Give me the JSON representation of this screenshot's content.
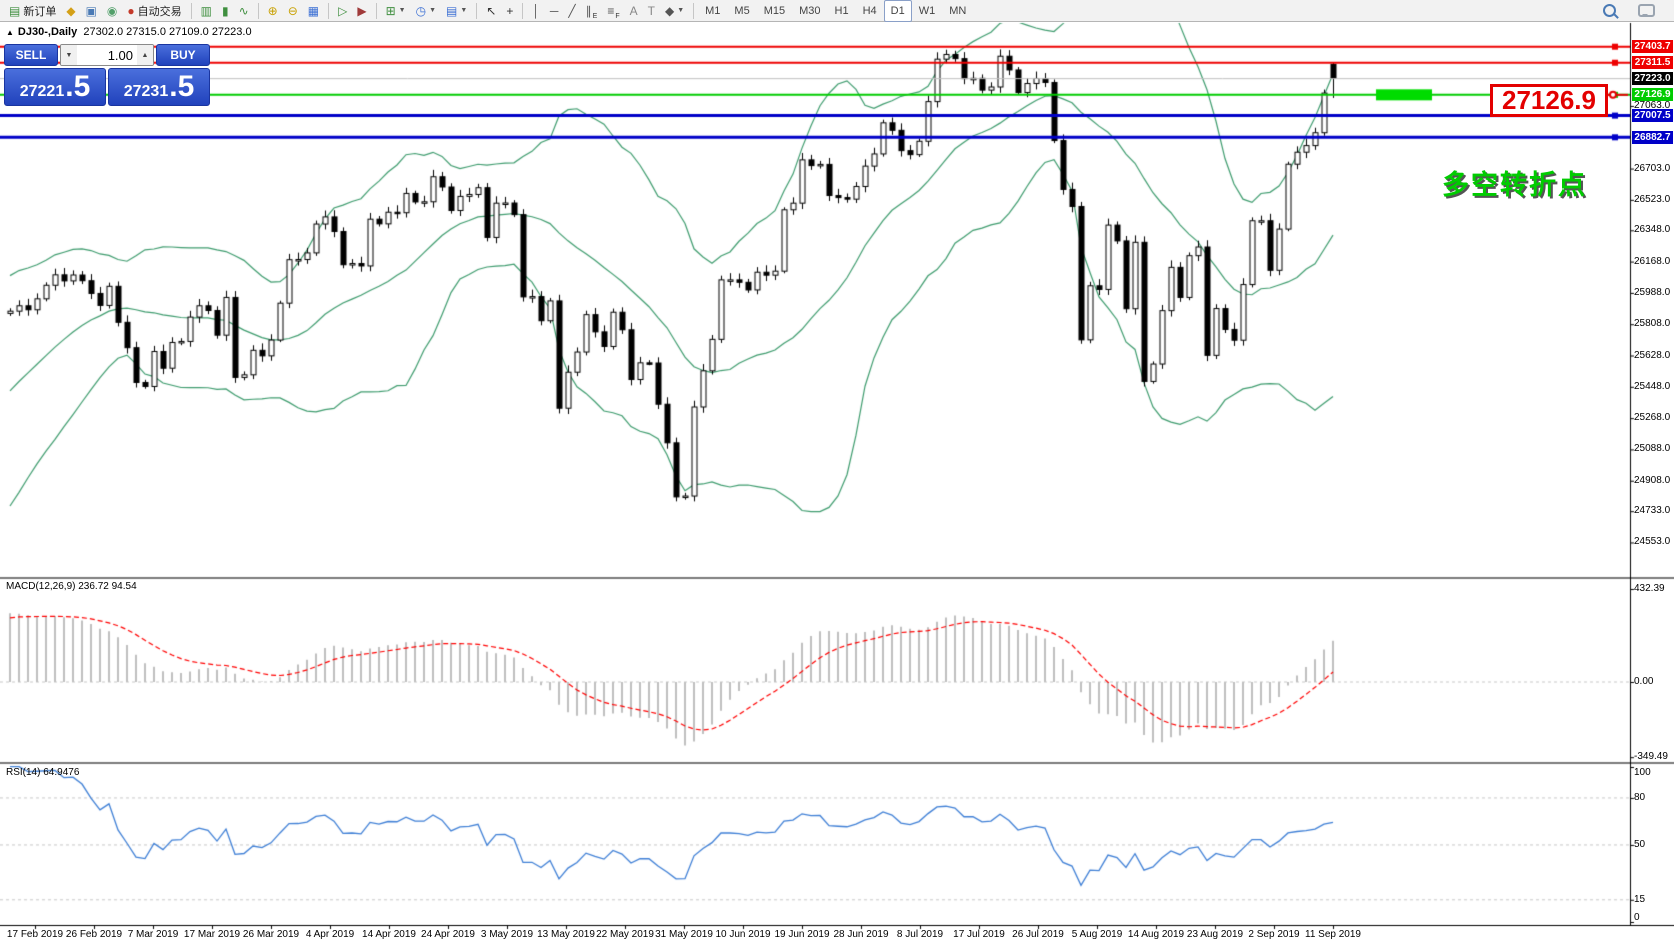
{
  "toolbar": {
    "groups": [
      {
        "name": "trade",
        "items": [
          {
            "name": "new-order-button",
            "glyph": "▤",
            "color": "#3f8f3f",
            "label": "新订单"
          },
          {
            "name": "new-chart-button",
            "glyph": "◆",
            "color": "#d4a017"
          },
          {
            "name": "terminal-button",
            "glyph": "▣",
            "color": "#4a7ab5"
          },
          {
            "name": "signals-button",
            "glyph": "◉",
            "color": "#52a06a"
          },
          {
            "name": "autotrading-button",
            "glyph": "●",
            "color": "#c43a2a",
            "label": "自动交易"
          }
        ]
      },
      {
        "name": "chart-type",
        "items": [
          {
            "name": "bar-chart-button",
            "glyph": "▥",
            "color": "#3f8f3f"
          },
          {
            "name": "candlestick-chart-button",
            "glyph": "▮",
            "color": "#3f8f3f"
          },
          {
            "name": "line-chart-button",
            "glyph": "∿",
            "color": "#3f8f3f"
          }
        ]
      },
      {
        "name": "zoom",
        "items": [
          {
            "name": "zoom-in-button",
            "glyph": "⊕",
            "color": "#c8a000"
          },
          {
            "name": "zoom-out-button",
            "glyph": "⊖",
            "color": "#c8a000"
          },
          {
            "name": "tile-windows-button",
            "glyph": "▦",
            "color": "#3b6fd4"
          }
        ]
      },
      {
        "name": "scroll",
        "items": [
          {
            "name": "auto-scroll-button",
            "glyph": "▷",
            "color": "#3f8f3f"
          },
          {
            "name": "chart-shift-button",
            "glyph": "▶",
            "color": "#a03a3a"
          }
        ]
      },
      {
        "name": "dropdowns",
        "items": [
          {
            "name": "indicators-button",
            "glyph": "⊞",
            "color": "#3f8f3f",
            "arrow": true
          },
          {
            "name": "periods-button",
            "glyph": "◷",
            "color": "#3b6fd4",
            "arrow": true
          },
          {
            "name": "templates-button",
            "glyph": "▤",
            "color": "#3b6fd4",
            "arrow": true
          }
        ]
      },
      {
        "name": "cursor",
        "items": [
          {
            "name": "cursor-button",
            "glyph": "↖",
            "color": "#333333"
          },
          {
            "name": "crosshair-button",
            "glyph": "+",
            "color": "#333333"
          }
        ]
      },
      {
        "name": "objects",
        "items": [
          {
            "name": "vertical-line-button",
            "glyph": "│",
            "color": "#555555"
          },
          {
            "name": "horizontal-line-button",
            "glyph": "─",
            "color": "#555555"
          },
          {
            "name": "trendline-button",
            "glyph": "╱",
            "color": "#555555"
          },
          {
            "name": "equidistant-channel-button",
            "glyph": "∥",
            "color": "#555555",
            "sub": "E"
          },
          {
            "name": "fibonacci-button",
            "glyph": "≡",
            "color": "#555555",
            "sub": "F"
          },
          {
            "name": "text-button",
            "glyph": "A",
            "color": "#888888"
          },
          {
            "name": "text-label-button",
            "glyph": "T",
            "color": "#888888"
          },
          {
            "name": "arrows-button",
            "glyph": "◆",
            "color": "#555555",
            "arrow": true
          }
        ]
      },
      {
        "name": "timeframes",
        "items": [
          {
            "name": "timeframe-m1",
            "label": "M1",
            "tf": true
          },
          {
            "name": "timeframe-m5",
            "label": "M5",
            "tf": true
          },
          {
            "name": "timeframe-m15",
            "label": "M15",
            "tf": true
          },
          {
            "name": "timeframe-m30",
            "label": "M30",
            "tf": true
          },
          {
            "name": "timeframe-h1",
            "label": "H1",
            "tf": true
          },
          {
            "name": "timeframe-h4",
            "label": "H4",
            "tf": true
          },
          {
            "name": "timeframe-d1",
            "label": "D1",
            "tf": true,
            "active": true
          },
          {
            "name": "timeframe-w1",
            "label": "W1",
            "tf": true
          },
          {
            "name": "timeframe-mn",
            "label": "MN",
            "tf": true
          }
        ]
      }
    ]
  },
  "sym": {
    "collapse_glyph": "▲",
    "title": "DJ30-,Daily",
    "ohlc": "27302.0 27315.0 27109.0 27223.0"
  },
  "trade": {
    "sell_label": "SELL",
    "buy_label": "BUY",
    "volume": "1.00",
    "vol_down_glyph": "▼",
    "vol_up_glyph": "▲",
    "sell_price_main": "27221",
    "sell_price_frac": ".5",
    "buy_price_main": "27231",
    "buy_price_frac": ".5"
  },
  "panes": {
    "macd_label": "MACD(12,26,9) 236.72 94.54",
    "rsi_label": "RSI(14) 64.9476"
  },
  "annotations": {
    "big_price_label": "27126.9",
    "turning_point": "多空转折点"
  },
  "axis": {
    "price_ticks": [
      "27063.0",
      "26703.0",
      "26523.0",
      "26348.0",
      "26168.0",
      "25988.0",
      "25808.0",
      "25628.0",
      "25448.0",
      "25268.0",
      "25088.0",
      "24908.0",
      "24733.0",
      "24553.0"
    ],
    "macd_ticks": [
      "432.39",
      "0.00",
      "-349.49"
    ],
    "rsi_ticks": [
      "100",
      "80",
      "50",
      "15",
      "0"
    ]
  },
  "chart_data": {
    "type": "candlestick",
    "symbol": "DJ30-",
    "timeframe": "Daily",
    "title": "DJ30-,Daily 27302.0 27315.0 27109.0 27223.0",
    "last_bar_ohlc": [
      27302.0,
      27315.0,
      27109.0,
      27223.0
    ],
    "current_price": {
      "price": 27223.0,
      "label": "27223.0",
      "color": "#000000"
    },
    "hlines": [
      {
        "price": 27403.7,
        "label": "27403.7",
        "color": "#ee0000",
        "width": 2
      },
      {
        "price": 27311.5,
        "label": "27311.5",
        "color": "#ee0000",
        "width": 2
      },
      {
        "price": 27126.9,
        "label": "27126.9",
        "color": "#00cc00",
        "width": 2,
        "highlight": true
      },
      {
        "price": 27007.5,
        "label": "27007.5",
        "color": "#0000c8",
        "width": 3
      },
      {
        "price": 26882.7,
        "label": "26882.7",
        "color": "#0000c8",
        "width": 3
      }
    ],
    "indicators": [
      {
        "name": "Bollinger Bands",
        "period": 20,
        "deviation": 2,
        "color": "#3e9c6e"
      },
      {
        "name": "MACD",
        "fast": 12,
        "slow": 26,
        "signal": 9,
        "main_value": 236.72,
        "signal_value": 94.54,
        "hist_color": "#bfbfbf",
        "signal_color": "#ff0000",
        "axis_range": [
          432.39,
          -349.49
        ]
      },
      {
        "name": "RSI",
        "period": 14,
        "value": 64.9476,
        "color": "#3e7fd6",
        "levels": [
          80,
          50,
          15
        ]
      }
    ],
    "pre_history": [
      24350,
      24420,
      24500,
      24560,
      24640,
      24700,
      24770,
      24840,
      24900,
      24970,
      25040,
      25110,
      25170,
      25240,
      25300,
      25370,
      25430,
      25490,
      25550,
      25600,
      25650,
      25700,
      25750,
      25800,
      25840,
      25870
    ],
    "closes": [
      25883,
      25914,
      25891,
      25954,
      26032,
      26092,
      26057,
      26091,
      26058,
      25985,
      25916,
      26026,
      25819,
      25673,
      25473,
      25450,
      25651,
      25555,
      25703,
      25709,
      25849,
      25914,
      25887,
      25745,
      25962,
      25502,
      25517,
      25658,
      25626,
      25717,
      25929,
      26179,
      26180,
      26218,
      26384,
      26425,
      26341,
      26150,
      26157,
      26143,
      26412,
      26385,
      26452,
      26449,
      26560,
      26511,
      26512,
      26656,
      26597,
      26462,
      26543,
      26554,
      26593,
      26307,
      26504,
      26505,
      26438,
      25965,
      25967,
      25828,
      25942,
      25325,
      25532,
      25648,
      25863,
      25764,
      25680,
      25877,
      25776,
      25490,
      25586,
      25585,
      25348,
      25126,
      24815,
      24820,
      25332,
      25540,
      25721,
      26063,
      26063,
      26049,
      26005,
      26107,
      26090,
      26113,
      26466,
      26504,
      26753,
      26720,
      26727,
      26548,
      26536,
      26527,
      26600,
      26717,
      26787,
      26966,
      26923,
      26806,
      26783,
      26860,
      27088,
      27332,
      27359,
      27335,
      27220,
      27222,
      27154,
      27172,
      27349,
      27270,
      27140,
      27192,
      27221,
      27198,
      26864,
      26583,
      26485,
      25718,
      26029,
      26008,
      26378,
      26287,
      25897,
      26279,
      25479,
      25579,
      25886,
      26135,
      25962,
      26202,
      26252,
      25629,
      25898,
      25778,
      25716,
      26036,
      26403,
      26403,
      26118,
      26355,
      26728,
      26797,
      26835,
      26909,
      27137,
      27223
    ],
    "dates": [
      "17 Feb 2019",
      "26 Feb 2019",
      "7 Mar 2019",
      "17 Mar 2019",
      "26 Mar 2019",
      "4 Apr 2019",
      "14 Apr 2019",
      "24 Apr 2019",
      "3 May 2019",
      "13 May 2019",
      "22 May 2019",
      "31 May 2019",
      "10 Jun 2019",
      "19 Jun 2019",
      "28 Jun 2019",
      "8 Jul 2019",
      "17 Jul 2019",
      "26 Jul 2019",
      "5 Aug 2019",
      "14 Aug 2019",
      "23 Aug 2019",
      "2 Sep 2019",
      "11 Sep 2019"
    ]
  }
}
